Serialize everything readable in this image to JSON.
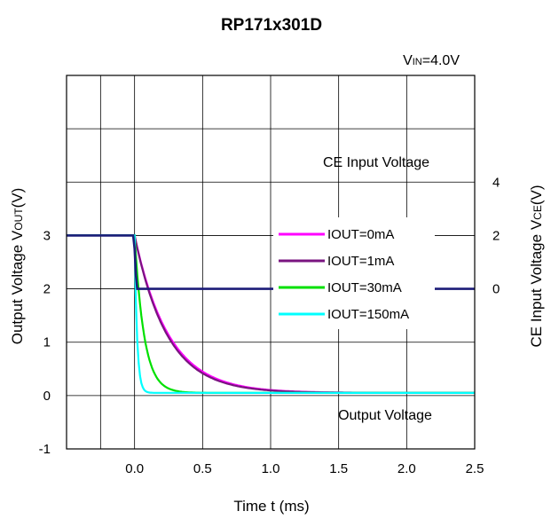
{
  "chart_data": {
    "type": "line",
    "title": "RP171x301D",
    "condition": {
      "prefix": "V",
      "sub": "IN",
      "rest": "=4.0V"
    },
    "xlabel": "Time t (ms)",
    "ylabel": {
      "prefix": "Output Voltage V",
      "sub": "OUT",
      "suffix": "(V)"
    },
    "y2label": {
      "prefix": "CE Input Voltage V",
      "sub": "CE",
      "suffix": "(V)"
    },
    "xlim": [
      -0.5,
      2.5
    ],
    "ylim": [
      -1,
      6
    ],
    "y2lim": [
      -6,
      8
    ],
    "x_ticks": [
      "0.0",
      "0.5",
      "1.0",
      "1.5",
      "2.0",
      "2.5"
    ],
    "y_ticks": [
      "3",
      "2",
      "1",
      "0",
      "-1"
    ],
    "y2_ticks": [
      "4",
      "2",
      "0"
    ],
    "grid": true,
    "legend_position": "center-right",
    "annotations": [
      {
        "text": "CE Input Voltage"
      },
      {
        "text": "Output Voltage"
      }
    ],
    "ce_series": {
      "name": "CE Input Voltage",
      "color": "#1c1c78",
      "axis": "right",
      "x": [
        -0.5,
        -0.01,
        0.0,
        0.01,
        0.02,
        2.5
      ],
      "y": [
        2.0,
        2.0,
        1.5,
        0.5,
        0.0,
        0.0
      ]
    },
    "series": [
      {
        "name": "IOUT=0mA",
        "color": "#ff00ff",
        "tau": 0.25
      },
      {
        "name": "IOUT=1mA",
        "color": "#7a1480",
        "tau": 0.24
      },
      {
        "name": "IOUT=30mA",
        "color": "#00e000",
        "tau": 0.07
      },
      {
        "name": "IOUT=150mA",
        "color": "#00ffff",
        "tau": 0.018
      }
    ],
    "output_model": {
      "v0": 3.0,
      "t_start": 0.0,
      "floor": 0.05,
      "x_step": 0.01
    }
  }
}
